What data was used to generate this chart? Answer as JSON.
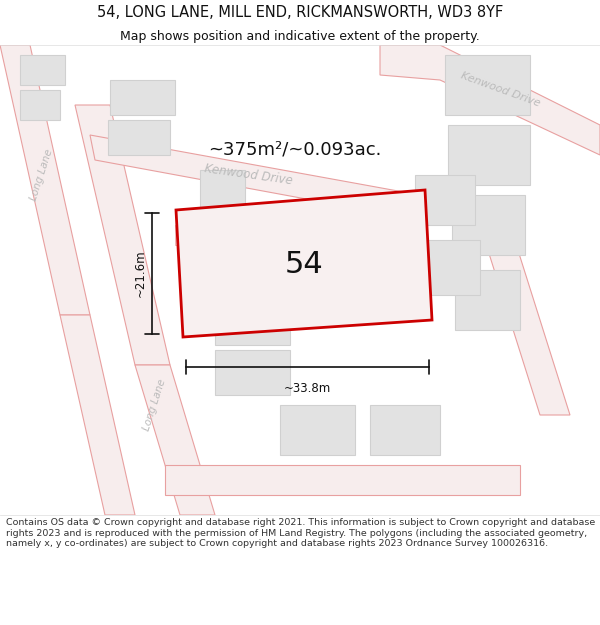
{
  "title": "54, LONG LANE, MILL END, RICKMANSWORTH, WD3 8YF",
  "subtitle": "Map shows position and indicative extent of the property.",
  "footer": "Contains OS data © Crown copyright and database right 2021. This information is subject to Crown copyright and database rights 2023 and is reproduced with the permission of HM Land Registry. The polygons (including the associated geometry, namely x, y co-ordinates) are subject to Crown copyright and database rights 2023 Ordnance Survey 100026316.",
  "area_label": "~375m²/~0.093ac.",
  "number_label": "54",
  "dim_width": "~33.8m",
  "dim_height": "~21.6m",
  "street_label_left_1": "Long Lane",
  "street_label_left_2": "Long Lane",
  "street_label_top": "Kenwood Drive",
  "street_label_tr": "Kenwood Drive",
  "bg_color": "#ffffff",
  "map_bg": "#ffffff",
  "road_color": "#e8a0a0",
  "road_fill": "#f7eded",
  "building_fill": "#e2e2e2",
  "building_edge": "#d0d0d0",
  "subject_fill": "#f8f0f0",
  "subject_edge": "#cc0000",
  "dim_color": "#111111",
  "street_text_color": "#bbbbbb",
  "title_color": "#111111",
  "footer_color": "#333333",
  "title_fontsize": 10.5,
  "subtitle_fontsize": 9,
  "footer_fontsize": 6.8
}
